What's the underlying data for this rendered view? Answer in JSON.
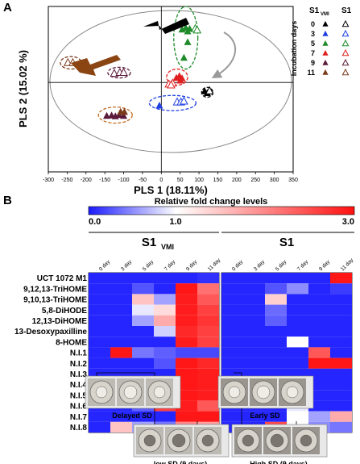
{
  "panels": {
    "a": "A",
    "b": "B"
  },
  "chart_data": [
    {
      "type": "scatter",
      "panel": "A",
      "xlabel": "PLS 1 (18.11%)",
      "ylabel": "PLS 2 (15.02 %)",
      "xlim": [
        -300,
        350
      ],
      "ylim": [
        -200,
        170
      ],
      "xticks": [
        -300,
        -250,
        -200,
        -150,
        -100,
        -50,
        0,
        50,
        100,
        150,
        200,
        250,
        300,
        350
      ],
      "legend": {
        "placement": "right",
        "title": "Incubation days",
        "col_headers": [
          "S1",
          "VMI",
          "S1"
        ],
        "days": [
          "0",
          "3",
          "5",
          "7",
          "9",
          "11"
        ],
        "colors": [
          "#000000",
          "#1f3fe0",
          "#1e8a2a",
          "#e02020",
          "#5a1a3a",
          "#7a3a1a"
        ]
      },
      "series": [
        {
          "name": "0",
          "color": "#000000",
          "filled": [
            [
              115,
              -20
            ],
            [
              122,
              -24
            ]
          ],
          "hollow": [
            [
              128,
              -19
            ]
          ]
        },
        {
          "name": "3",
          "color": "#1f3fe0",
          "filled": [
            [
              -5,
              -52
            ]
          ],
          "hollow": [
            [
              42,
              -44
            ],
            [
              52,
              -44
            ],
            [
              60,
              -42
            ]
          ]
        },
        {
          "name": "5",
          "color": "#1e8a2a",
          "filled": [
            [
              55,
              118
            ],
            [
              65,
              122
            ],
            [
              70,
              114
            ],
            [
              75,
              120
            ],
            [
              70,
              90
            ],
            [
              60,
              55
            ]
          ],
          "hollow": [
            [
              90,
              120
            ],
            [
              95,
              117
            ]
          ]
        },
        {
          "name": "7",
          "color": "#e02020",
          "filled": [
            [
              40,
              10
            ],
            [
              48,
              14
            ],
            [
              55,
              9
            ],
            [
              50,
              4
            ]
          ],
          "hollow": [
            [
              20,
              -4
            ],
            [
              30,
              -2
            ],
            [
              26,
              -6
            ]
          ]
        },
        {
          "name": "9",
          "color": "#5a1a3a",
          "filled": [
            [
              -145,
              -75
            ],
            [
              -132,
              -74
            ],
            [
              -122,
              -76
            ],
            [
              -112,
              -73
            ],
            [
              -100,
              -75
            ]
          ],
          "hollow": [
            [
              -125,
              20
            ],
            [
              -110,
              22
            ],
            [
              -100,
              22
            ]
          ]
        },
        {
          "name": "11",
          "color": "#7a3a1a",
          "filled": [
            [
              -108,
              -66
            ],
            [
              -98,
              -66
            ]
          ],
          "hollow": [
            [
              -248,
              44
            ],
            [
              -235,
              44
            ]
          ]
        }
      ],
      "ellipses": [
        {
          "color": "#7a3a1a",
          "cx": -240,
          "cy": 44,
          "rx": 28,
          "ry": 14
        },
        {
          "color": "#5a1a3a",
          "cx": -112,
          "cy": 22,
          "rx": 30,
          "ry": 12
        },
        {
          "color": "#c06a20",
          "cx": -122,
          "cy": -73,
          "rx": 45,
          "ry": 18
        },
        {
          "color": "#1e8a2a",
          "cx": 65,
          "cy": 100,
          "rx": 32,
          "ry": 70
        },
        {
          "color": "#e02020",
          "cx": 42,
          "cy": 12,
          "rx": 28,
          "ry": 18
        },
        {
          "color": "#1f3fe0",
          "cx": 30,
          "cy": -46,
          "rx": 62,
          "ry": 17
        },
        {
          "color": "#000000",
          "cx": 122,
          "cy": -22,
          "rx": 15,
          "ry": 11
        }
      ]
    },
    {
      "type": "heatmap",
      "panel": "B",
      "title": "Relative fold change levels",
      "colorbar": {
        "min": 0.0,
        "mid": 1.0,
        "max": 3.0,
        "labels": [
          "0.0",
          "1.0",
          "3.0"
        ]
      },
      "groups": [
        {
          "name": "S1",
          "sub": "VMI",
          "columns": [
            "0 day",
            "3 day",
            "5 day",
            "7 day",
            "9 day",
            "11 day"
          ]
        },
        {
          "name": "S1",
          "sub": "",
          "columns": [
            "0 day",
            "3 day",
            "5 day",
            "7 day",
            "9 day",
            "11 day"
          ]
        }
      ],
      "rows": [
        "UCT 1072 M1",
        "9,12,13-TriHOME",
        "9,10,13-TriHOME",
        "5,8-DiHODE",
        "12,13-DiHOME",
        "13-Desoxypaxilline",
        "8-HOME",
        "N.I.1",
        "N.I.2",
        "N.I.3",
        "N.I.4",
        "N.I.5",
        "N.I.6",
        "N.I.7",
        "N.I.8"
      ],
      "values": [
        [
          [
            0.05,
            0.05,
            0.05,
            0.05,
            0.05,
            0.1
          ],
          [
            0.05,
            0.05,
            0.05,
            0.05,
            0.05,
            2.95
          ]
        ],
        [
          [
            0.05,
            0.05,
            0.25,
            0.05,
            2.95,
            2.2
          ],
          [
            0.05,
            0.05,
            0.25,
            0.5,
            0.05,
            0.15
          ]
        ],
        [
          [
            0.05,
            0.05,
            1.5,
            0.6,
            2.9,
            2.4
          ],
          [
            0.05,
            0.05,
            1.4,
            0.05,
            0.05,
            0.05
          ]
        ],
        [
          [
            0.05,
            0.05,
            0.9,
            1.3,
            2.9,
            2.6
          ],
          [
            0.05,
            0.05,
            0.35,
            0.05,
            0.05,
            0.05
          ]
        ],
        [
          [
            0.05,
            0.05,
            0.6,
            1.7,
            2.9,
            2.7
          ],
          [
            0.05,
            0.05,
            0.3,
            0.05,
            0.05,
            0.05
          ]
        ],
        [
          [
            0.05,
            0.05,
            0.05,
            0.8,
            2.8,
            2.6
          ],
          [
            0.05,
            0.05,
            0.05,
            0.05,
            0.05,
            0.05
          ]
        ],
        [
          [
            0.05,
            0.05,
            0.05,
            0.05,
            2.9,
            2.6
          ],
          [
            0.05,
            0.05,
            0.05,
            1.0,
            0.05,
            0.05
          ]
        ],
        [
          [
            0.05,
            2.95,
            0.4,
            0.3,
            0.2,
            0.2
          ],
          [
            0.05,
            0.05,
            0.05,
            0.05,
            2.4,
            0.05
          ]
        ],
        [
          [
            0.05,
            0.05,
            0.05,
            0.25,
            2.95,
            2.8
          ],
          [
            0.05,
            0.05,
            0.05,
            0.05,
            2.95,
            2.95
          ]
        ],
        [
          [
            0.05,
            0.05,
            0.05,
            0.05,
            2.95,
            2.9
          ],
          [
            0.05,
            0.05,
            0.05,
            0.05,
            0.05,
            0.05
          ]
        ],
        [
          [
            0.05,
            0.4,
            0.6,
            0.5,
            2.95,
            2.9
          ],
          [
            0.05,
            0.05,
            2.2,
            0.05,
            0.05,
            0.05
          ]
        ],
        [
          [
            0.05,
            0.05,
            0.05,
            0.05,
            2.95,
            2.9
          ],
          [
            0.05,
            0.05,
            0.3,
            0.05,
            0.05,
            0.05
          ]
        ],
        [
          [
            0.05,
            0.05,
            0.3,
            2.6,
            2.9,
            2.4
          ],
          [
            0.05,
            0.05,
            0.05,
            0.9,
            0.05,
            0.05
          ]
        ],
        [
          [
            0.05,
            0.05,
            0.05,
            0.05,
            2.95,
            2.95
          ],
          [
            0.05,
            0.05,
            0.05,
            1.0,
            0.6,
            1.7
          ]
        ],
        [
          [
            0.05,
            1.5,
            0.6,
            0.4,
            2.0,
            1.8
          ],
          [
            0.05,
            0.05,
            2.5,
            1.0,
            0.5,
            0.4
          ]
        ]
      ],
      "photo_groups": [
        {
          "caption": "Delayed SD",
          "photos": 3
        },
        {
          "caption": "Early SD",
          "photos": 3
        },
        {
          "caption": "low SD (9 days)",
          "photos": 3
        },
        {
          "caption": "High SD (9 days)",
          "photos": 3
        }
      ]
    }
  ]
}
